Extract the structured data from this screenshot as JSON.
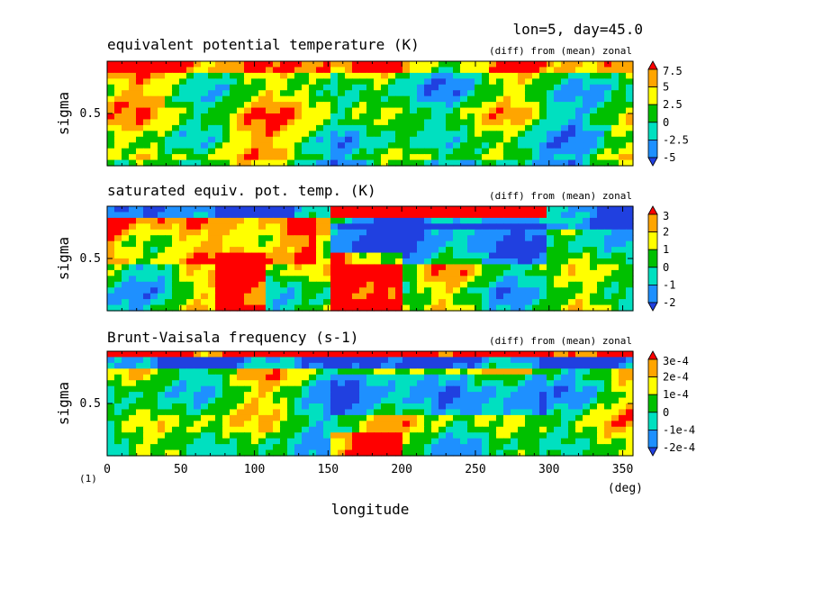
{
  "header": "lon=5, day=45.0",
  "corner_note": "(1)",
  "chart_data": [
    {
      "type": "heatmap",
      "title": "equivalent potential temperature (K)",
      "subtitle": "(diff) from (mean) zonal",
      "ylabel": "sigma",
      "yticks": [
        "0.5"
      ],
      "ylim": [
        1,
        0
      ],
      "colorbar": [
        "7.5",
        "5",
        "2.5",
        "0",
        "-2.5",
        "-5"
      ],
      "colorbar_values": [
        7.5,
        5,
        2.5,
        0,
        -2.5,
        -5
      ]
    },
    {
      "type": "heatmap",
      "title": "saturated equiv. pot. temp. (K)",
      "subtitle": "(diff) from (mean) zonal",
      "ylabel": "sigma",
      "yticks": [
        "0.5"
      ],
      "ylim": [
        1,
        0
      ],
      "colorbar": [
        "3",
        "2",
        "1",
        "0",
        "-1",
        "-2"
      ],
      "colorbar_values": [
        3,
        2,
        1,
        0,
        -1,
        -2
      ]
    },
    {
      "type": "heatmap",
      "title": "Brunt-Vaisala frequency (s-1)",
      "subtitle": "(diff) from (mean) zonal",
      "ylabel": "sigma",
      "yticks": [
        "0.5"
      ],
      "ylim": [
        1,
        0
      ],
      "colorbar": [
        "3e-4",
        "2e-4",
        "1e-4",
        "0",
        "-1e-4",
        "-2e-4"
      ],
      "colorbar_values": [
        0.0003,
        0.0002,
        0.0001,
        0,
        -0.0001,
        -0.0002
      ]
    }
  ],
  "xaxis": {
    "label": "longitude",
    "unit": "(deg)",
    "ticks": [
      "0",
      "50",
      "100",
      "150",
      "200",
      "250",
      "300",
      "350"
    ],
    "tick_values": [
      0,
      50,
      100,
      150,
      200,
      250,
      300,
      350
    ],
    "xlim": [
      0,
      357
    ]
  },
  "colormap": [
    "#2040e0",
    "#1e90ff",
    "#00e0c0",
    "#00c000",
    "#ffff00",
    "#ffa500",
    "#ff0000"
  ]
}
